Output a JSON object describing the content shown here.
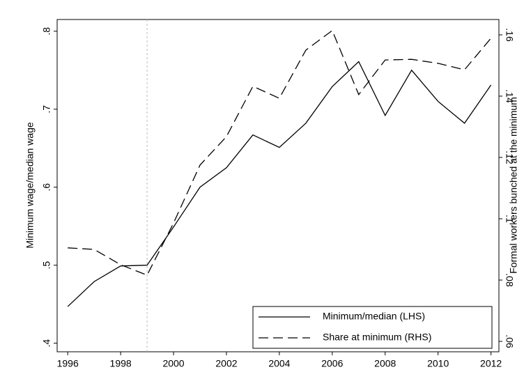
{
  "chart_data": {
    "type": "line",
    "ylabel": "Minimum wage/median wage",
    "y2label": "Formal workers bunched at the minimum",
    "x": [
      1996,
      1997,
      1998,
      1999,
      2000,
      2001,
      2002,
      2003,
      2004,
      2005,
      2006,
      2007,
      2008,
      2009,
      2010,
      2011,
      2012
    ],
    "series": [
      {
        "name": "Minimum/median (LHS)",
        "color": "#000000",
        "line_style": "solid",
        "values": [
          0.447,
          0.479,
          0.499,
          0.5,
          0.549,
          0.6,
          0.625,
          0.667,
          0.651,
          0.682,
          0.729,
          0.761,
          0.692,
          0.75,
          0.71,
          0.682,
          0.731
        ]
      },
      {
        "name": "Share at minimum (RHS)",
        "color": "#000000",
        "line_style": "dashed",
        "axis": "y2",
        "values": [
          0.0905,
          0.09,
          0.085,
          0.0816,
          0.0986,
          0.1175,
          0.1268,
          0.1432,
          0.1393,
          0.155,
          0.1614,
          0.1405,
          0.1518,
          0.152,
          0.1507,
          0.1486,
          0.1589
        ]
      }
    ],
    "xlim": [
      1995.6,
      2012.3
    ],
    "xticks": [
      1996,
      1998,
      2000,
      2002,
      2004,
      2006,
      2008,
      2010,
      2012
    ],
    "ylim": [
      0.389,
      0.815
    ],
    "yticks": [
      {
        "value": 0.4,
        "label": ".4"
      },
      {
        "value": 0.5,
        "label": ".5"
      },
      {
        "value": 0.6,
        "label": ".6"
      },
      {
        "value": 0.7,
        "label": ".7"
      },
      {
        "value": 0.8,
        "label": ".8"
      }
    ],
    "y2lim": [
      0.0566,
      0.165
    ],
    "y2ticks": [
      {
        "value": 0.06,
        "label": ".06"
      },
      {
        "value": 0.08,
        "label": ".08"
      },
      {
        "value": 0.1,
        "label": ".1"
      },
      {
        "value": 0.12,
        "label": ".12"
      },
      {
        "value": 0.14,
        "label": ".14"
      },
      {
        "value": 0.16,
        "label": ".16"
      }
    ],
    "xline": 1999,
    "legend": "bottom-right"
  }
}
